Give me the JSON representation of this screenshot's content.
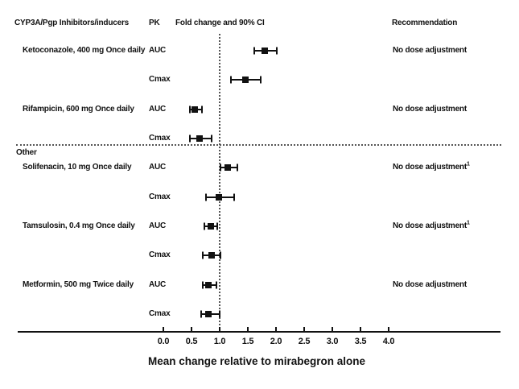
{
  "figure": {
    "columns": {
      "drug": "CYP3A/Pgp Inhibitors/inducers",
      "pk": "PK",
      "plot": "Fold change and 90% CI",
      "recommendation": "Recommendation"
    },
    "colors": {
      "marker": "#111111",
      "reference_line": "#555555",
      "background": "#ffffff"
    }
  },
  "chart_data": {
    "type": "forest",
    "title": "Fold change and 90% CI",
    "xlabel": "Mean change relative to mirabegron alone",
    "x_axis": {
      "tick_labels": [
        "0.0",
        "0.5",
        "1.0",
        "1.5",
        "2.0",
        "2.5",
        "3.0",
        "3.5",
        "4.0"
      ],
      "range": [
        0.0,
        4.0
      ],
      "reference_line": 1.0
    },
    "sections": [
      {
        "label": "",
        "drugs": [
          {
            "name": "Ketoconazole, 400 mg Once daily",
            "recommendation": "No dose adjustment",
            "recommendation_footnote": "",
            "measures": [
              {
                "pk": "AUC",
                "estimate": 1.8,
                "ci90_low": 1.61,
                "ci90_high": 2.01
              },
              {
                "pk": "Cmax",
                "estimate": 1.45,
                "ci90_low": 1.2,
                "ci90_high": 1.73
              }
            ]
          },
          {
            "name": "Rifampicin, 600 mg Once daily",
            "recommendation": "No dose adjustment",
            "recommendation_footnote": "",
            "measures": [
              {
                "pk": "AUC",
                "estimate": 0.56,
                "ci90_low": 0.47,
                "ci90_high": 0.68
              },
              {
                "pk": "Cmax",
                "estimate": 0.64,
                "ci90_low": 0.47,
                "ci90_high": 0.85
              }
            ]
          }
        ]
      },
      {
        "label": "Other",
        "drugs": [
          {
            "name": "Solifenacin, 10 mg Once daily",
            "recommendation": "No dose adjustment",
            "recommendation_footnote": "1",
            "measures": [
              {
                "pk": "AUC",
                "estimate": 1.14,
                "ci90_low": 1.01,
                "ci90_high": 1.31
              },
              {
                "pk": "Cmax",
                "estimate": 0.98,
                "ci90_low": 0.76,
                "ci90_high": 1.25
              }
            ]
          },
          {
            "name": "Tamsulosin, 0.4 mg Once daily",
            "recommendation": "No dose adjustment",
            "recommendation_footnote": "1",
            "measures": [
              {
                "pk": "AUC",
                "estimate": 0.84,
                "ci90_low": 0.73,
                "ci90_high": 0.96
              },
              {
                "pk": "Cmax",
                "estimate": 0.85,
                "ci90_low": 0.7,
                "ci90_high": 1.01
              }
            ]
          },
          {
            "name": "Metformin, 500 mg Twice daily",
            "recommendation": "No dose adjustment",
            "recommendation_footnote": "",
            "measures": [
              {
                "pk": "AUC",
                "estimate": 0.8,
                "ci90_low": 0.7,
                "ci90_high": 0.94
              },
              {
                "pk": "Cmax",
                "estimate": 0.8,
                "ci90_low": 0.67,
                "ci90_high": 1.0
              }
            ]
          }
        ]
      }
    ]
  }
}
